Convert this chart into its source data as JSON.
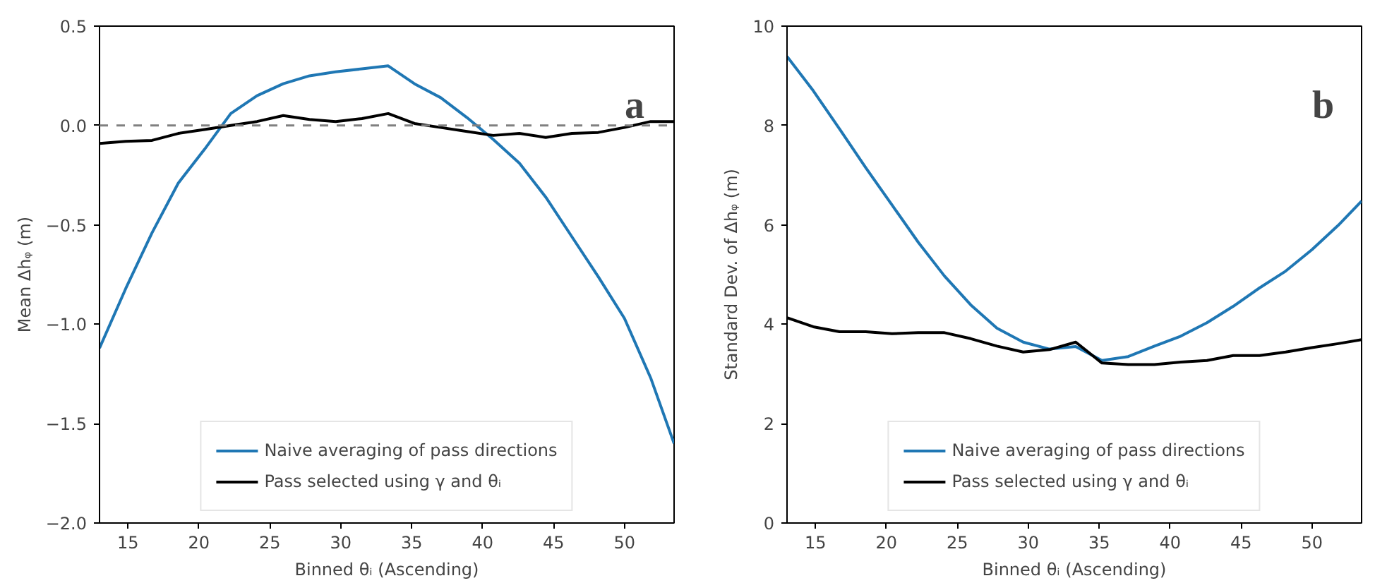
{
  "chart_data": [
    {
      "type": "line",
      "xlabel": "Binned θᵢ (Ascending)",
      "ylabel": "Mean Δhᵩ (m)",
      "x": [
        13,
        14.85,
        16.7,
        18.55,
        20.4,
        22.25,
        24.1,
        25.95,
        27.8,
        29.65,
        31.5,
        33.35,
        35.2,
        37.05,
        38.9,
        40.75,
        42.6,
        44.45,
        46.3,
        48.15,
        50,
        51.85,
        53.5
      ],
      "xlim": [
        13,
        53.5
      ],
      "xticks": [
        15,
        20,
        25,
        30,
        35,
        40,
        45,
        50
      ],
      "ylim": [
        -2.0,
        0.5
      ],
      "yticks": [
        {
          "value": -2.0,
          "label": "−2.0"
        },
        {
          "value": -1.5,
          "label": "−1.5"
        },
        {
          "value": -1.0,
          "label": "−1.0"
        },
        {
          "value": -0.5,
          "label": "−0.5"
        },
        {
          "value": 0.0,
          "label": "0.0"
        },
        {
          "value": 0.5,
          "label": "0.5"
        }
      ],
      "ref_lines": [
        {
          "axis": "y",
          "value": 0,
          "color": "#808080",
          "line_style": "dashed"
        }
      ],
      "legend": "bottom",
      "annotations": [
        "a"
      ],
      "series": [
        {
          "name": "Naive averaging of pass directions",
          "color": "#1f77b4",
          "values": [
            -1.12,
            -0.82,
            -0.54,
            -0.29,
            -0.12,
            0.06,
            0.15,
            0.21,
            0.25,
            0.27,
            0.285,
            0.3,
            0.21,
            0.14,
            0.04,
            -0.07,
            -0.19,
            -0.36,
            -0.56,
            -0.76,
            -0.97,
            -1.27,
            -1.6
          ]
        },
        {
          "name": "Pass selected using γ and θᵢ",
          "color": "#000000",
          "values": [
            -0.09,
            -0.08,
            -0.075,
            -0.04,
            -0.02,
            0.0,
            0.02,
            0.05,
            0.03,
            0.02,
            0.035,
            0.06,
            0.01,
            -0.01,
            -0.03,
            -0.05,
            -0.04,
            -0.06,
            -0.04,
            -0.035,
            -0.01,
            0.02,
            0.02
          ]
        }
      ]
    },
    {
      "type": "line",
      "xlabel": "Binned θᵢ (Ascending)",
      "ylabel": "Standard Dev. of Δhᵩ (m)",
      "x": [
        13,
        14.85,
        16.7,
        18.55,
        20.4,
        22.25,
        24.1,
        25.95,
        27.8,
        29.65,
        31.5,
        33.35,
        35.2,
        37.05,
        38.9,
        40.75,
        42.6,
        44.45,
        46.3,
        48.15,
        50,
        51.85,
        53.5
      ],
      "xlim": [
        13,
        53.5
      ],
      "xticks": [
        15,
        20,
        25,
        30,
        35,
        40,
        45,
        50
      ],
      "ylim": [
        0,
        10
      ],
      "yticks": [
        0,
        2,
        4,
        6,
        8,
        10
      ],
      "legend": "bottom",
      "annotations": [
        "b"
      ],
      "series": [
        {
          "name": "Naive averaging of pass directions",
          "color": "#1f77b4",
          "values": [
            9.39,
            8.7,
            7.93,
            7.15,
            6.4,
            5.65,
            4.97,
            4.39,
            3.92,
            3.64,
            3.5,
            3.55,
            3.27,
            3.35,
            3.56,
            3.76,
            4.03,
            4.36,
            4.73,
            5.07,
            5.5,
            5.99,
            6.48
          ]
        },
        {
          "name": "Pass selected using γ and θᵢ",
          "color": "#000000",
          "values": [
            4.13,
            3.95,
            3.85,
            3.85,
            3.81,
            3.83,
            3.83,
            3.71,
            3.56,
            3.44,
            3.49,
            3.64,
            3.22,
            3.19,
            3.19,
            3.24,
            3.27,
            3.37,
            3.37,
            3.44,
            3.53,
            3.61,
            3.69
          ]
        }
      ]
    }
  ]
}
